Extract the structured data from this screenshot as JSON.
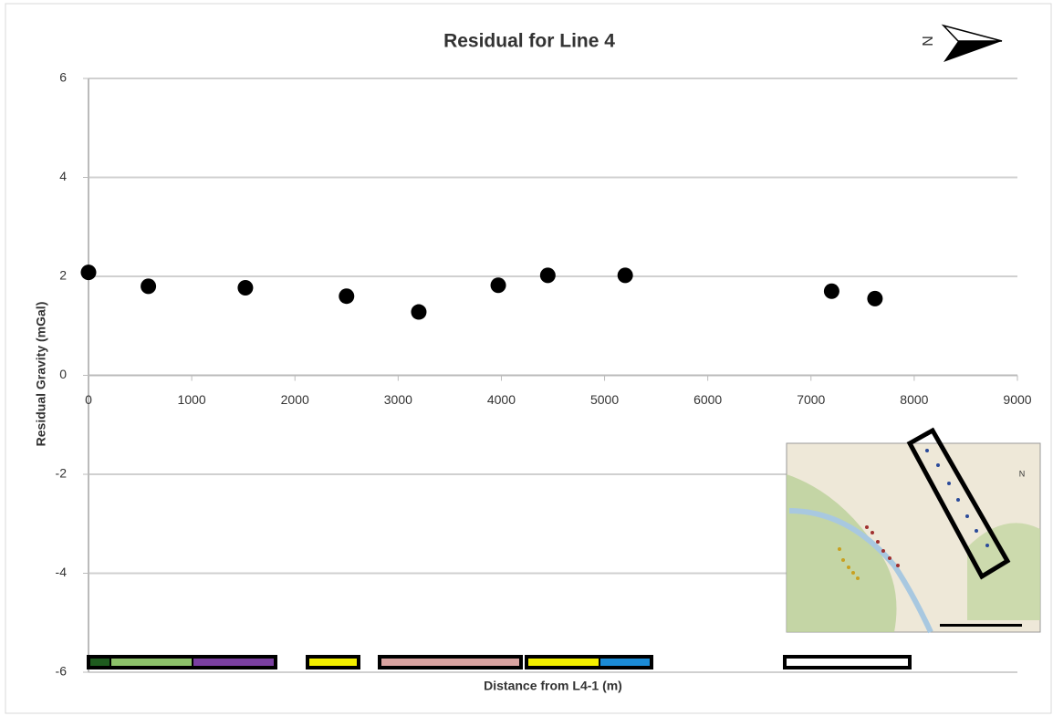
{
  "chart_data": {
    "type": "scatter",
    "title": "Residual for Line 4",
    "x_label": "Distance from L4-1 (m)",
    "y_label": "Residual Gravity (mGal)",
    "x": [
      0,
      580,
      1520,
      2500,
      3200,
      3970,
      4450,
      5200,
      7200,
      7620
    ],
    "series": [
      {
        "color": "#000000",
        "values": [
          2.08,
          1.8,
          1.77,
          1.6,
          1.28,
          1.82,
          2.02,
          2.02,
          1.7,
          1.55
        ]
      }
    ],
    "xlim": [
      0,
      9000
    ],
    "xticks": [
      0,
      1000,
      2000,
      3000,
      4000,
      5000,
      6000,
      7000,
      8000,
      9000
    ],
    "ylim": [
      -6,
      6
    ],
    "yticks": [
      -6,
      -4,
      -2,
      0,
      2,
      4,
      6
    ],
    "grid": true,
    "annotations": [
      "N"
    ]
  }
}
